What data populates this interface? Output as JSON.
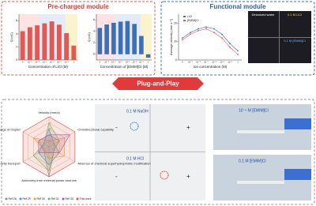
{
  "header": {
    "left_title": "Pre-charged module",
    "right_title": "Functional module",
    "banner": "Plug-and-Play"
  },
  "chart_data": [
    {
      "type": "bar",
      "y_label": "Q (nC)",
      "x_label": "Concentration of LiCl (M)",
      "categories": [
        "0",
        "10⁻⁶",
        "10⁻⁵",
        "10⁻⁴",
        "10⁻³",
        "10⁻²",
        "10⁻¹",
        "1"
      ],
      "values": [
        4.4,
        5.0,
        5.3,
        5.6,
        5.9,
        5.4,
        4.1,
        2.2
      ],
      "color": "#e05a55",
      "ylim": [
        0,
        7
      ],
      "yticks": [
        0,
        2,
        4,
        6
      ]
    },
    {
      "type": "bar",
      "y_label": "Q (nC)",
      "x_label": "Concentration of [EMIM]Cl (M)",
      "categories": [
        "0",
        "10⁻⁶",
        "10⁻⁵",
        "10⁻⁴",
        "10⁻³",
        "10⁻²",
        "10⁻¹",
        "1"
      ],
      "values": [
        4.6,
        5.2,
        5.5,
        5.7,
        5.8,
        5.3,
        3.2,
        -0.6
      ],
      "color": "#3d6fb6",
      "ylim": [
        -1,
        7
      ],
      "yticks": [
        0,
        2,
        4,
        6
      ]
    },
    {
      "type": "line",
      "y_label": "Average velocity (mm s⁻¹)",
      "x_label": "Ion concentration (M)",
      "categories": [
        "0",
        "10⁻⁶",
        "10⁻⁵",
        "10⁻⁴",
        "10⁻³",
        "10⁻²",
        "10⁻¹",
        "1"
      ],
      "series": [
        {
          "name": "LiCl",
          "color": "#3d6fb6",
          "values": [
            12,
            15,
            17,
            18,
            17,
            14,
            9,
            5
          ]
        },
        {
          "name": "[EMIM]Cl",
          "color": "#e05a55",
          "values": [
            11,
            14,
            16,
            17,
            15,
            12,
            7,
            3
          ]
        }
      ],
      "ylim": [
        0,
        25
      ],
      "yticks": [
        0,
        10,
        20
      ]
    },
    {
      "type": "radar",
      "axes": [
        "Velocity (mm/s)",
        "Omnidirectional capability",
        "Absence of chemical superhydrophobic modification",
        "Autonomy from external power sources",
        "Antigravity transport",
        "Tunable charge of droplet"
      ],
      "rlim": [
        0,
        5
      ],
      "rticks": [
        1,
        2,
        3,
        4,
        5
      ],
      "series": [
        {
          "name": "Ref 26",
          "color": "#8c8c8c",
          "values": [
            2,
            2,
            1,
            5,
            1,
            2
          ]
        },
        {
          "name": "Ref 29",
          "color": "#4a90d9",
          "values": [
            3,
            1,
            2,
            3,
            2,
            1
          ]
        },
        {
          "name": "Ref 30",
          "color": "#f0a030",
          "values": [
            1,
            3,
            3,
            2,
            1,
            3
          ]
        },
        {
          "name": "Ref 31",
          "color": "#6abf69",
          "values": [
            4,
            2,
            1,
            4,
            3,
            1
          ]
        },
        {
          "name": "Ref 33",
          "color": "#9b59b6",
          "values": [
            2,
            4,
            2,
            1,
            2,
            2
          ]
        },
        {
          "name": "This work",
          "color": "#e74c3c",
          "values": [
            5,
            5,
            5,
            5,
            5,
            5
          ]
        }
      ]
    }
  ],
  "photos": {
    "functional": [
      "Deionized water",
      "0.1 M LiCl",
      "0.1 M [EMIM]Cl"
    ],
    "middle": {
      "top": "0.1 M NaOH",
      "bottom": "0.1 M HCl",
      "minus": "-",
      "plus": "+"
    },
    "right": {
      "top": "10⁻⁶ M [EMIM]Cl",
      "bottom": "0.1 M [EMIM]Cl"
    }
  }
}
